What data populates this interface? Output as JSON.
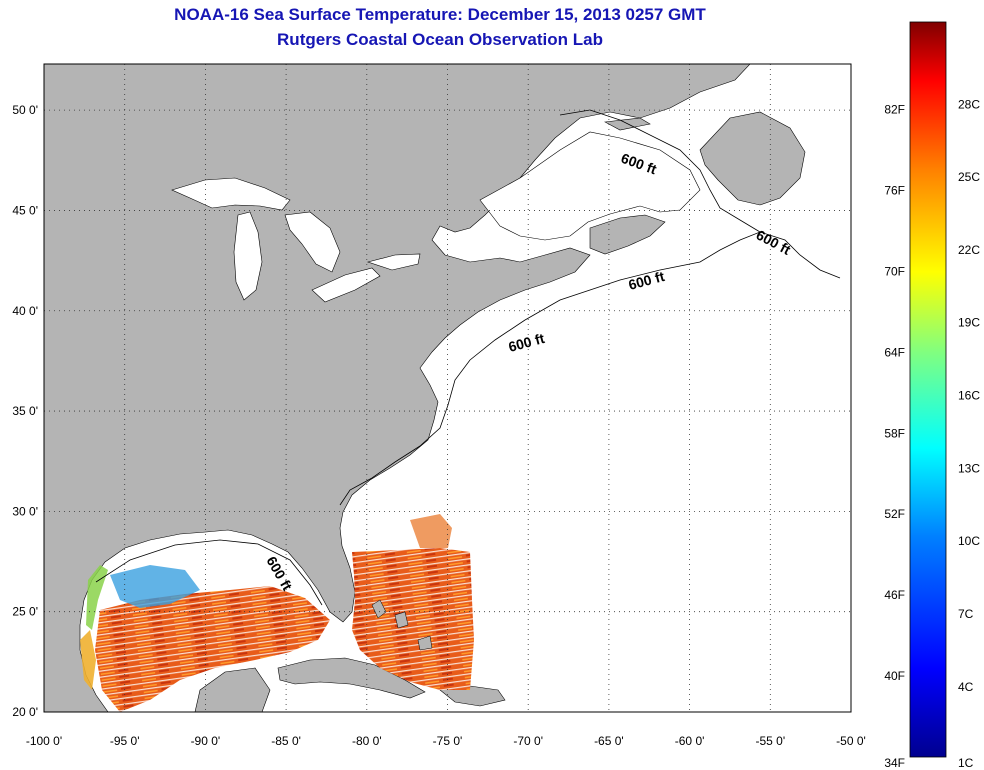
{
  "header": {
    "title": "NOAA-16 Sea Surface Temperature:  December 15, 2013 0257 GMT",
    "subtitle": "Rutgers Coastal Ocean Observation Lab"
  },
  "map": {
    "x_ticks": [
      "-100 0'",
      "-95 0'",
      "-90 0'",
      "-85 0'",
      "-80 0'",
      "-75 0'",
      "-70 0'",
      "-65 0'",
      "-60 0'",
      "-55 0'",
      "-50 0'"
    ],
    "y_ticks": [
      "50 0'",
      "45 0'",
      "40 0'",
      "35 0'",
      "30 0'",
      "25 0'",
      "20 0'"
    ],
    "contour_label": "600 ft",
    "land_color": "#b4b4b4",
    "grid": "dotted"
  },
  "colorbar": {
    "f_labels": [
      "82F",
      "76F",
      "70F",
      "64F",
      "58F",
      "52F",
      "46F",
      "40F",
      "34F"
    ],
    "c_labels": [
      "28C",
      "25C",
      "22C",
      "19C",
      "16C",
      "13C",
      "10C",
      "7C",
      "4C",
      "1C"
    ],
    "colors": [
      "#00008f",
      "#0000ff",
      "#0080ff",
      "#00ffff",
      "#80ff80",
      "#ffff00",
      "#ff8000",
      "#ff0000",
      "#800000"
    ]
  }
}
